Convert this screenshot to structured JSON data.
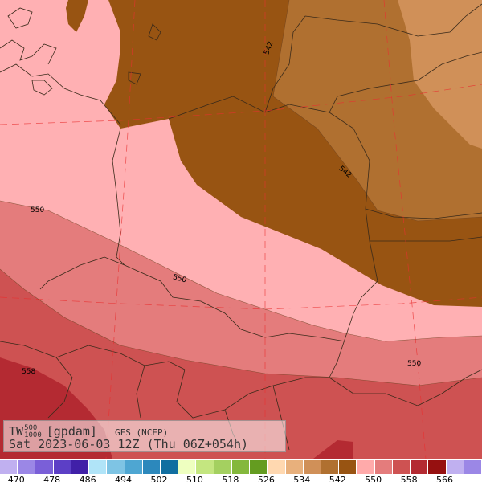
{
  "map": {
    "variable_main": "TW",
    "variable_sup": "500",
    "variable_sub": "1000",
    "unit": "[gpdam]",
    "model": "GFS (NCEP)",
    "valid_time": "Sat 2023-06-03 12Z (Thu 06Z+054h)",
    "contour_labels": [
      "542",
      "542",
      "550",
      "550",
      "550",
      "558"
    ]
  },
  "legend": {
    "swatches": [
      {
        "color": "#c0b0f0"
      },
      {
        "color": "#9b87e6"
      },
      {
        "color": "#7a5fd8"
      },
      {
        "color": "#5c3fc6"
      },
      {
        "color": "#4020a8"
      },
      {
        "color": "#b0e4f8"
      },
      {
        "color": "#7ec4e4"
      },
      {
        "color": "#4ea6d2"
      },
      {
        "color": "#2c88bc"
      },
      {
        "color": "#106ea0"
      },
      {
        "color": "#eeffc0"
      },
      {
        "color": "#c4e680"
      },
      {
        "color": "#a4d060"
      },
      {
        "color": "#84b83c"
      },
      {
        "color": "#649c20"
      },
      {
        "color": "#ffd8b0"
      },
      {
        "color": "#e8b07c"
      },
      {
        "color": "#d09058"
      },
      {
        "color": "#b07030"
      },
      {
        "color": "#985412"
      },
      {
        "color": "#ffaaaa"
      },
      {
        "color": "#e47c7c"
      },
      {
        "color": "#ce5252"
      },
      {
        "color": "#b42a32"
      },
      {
        "color": "#961010"
      },
      {
        "color": "#c0b0f0"
      },
      {
        "color": "#9b87e6"
      }
    ],
    "ticks": [
      "470",
      "478",
      "486",
      "494",
      "502",
      "510",
      "518",
      "526",
      "534",
      "542",
      "550",
      "558",
      "566"
    ]
  }
}
